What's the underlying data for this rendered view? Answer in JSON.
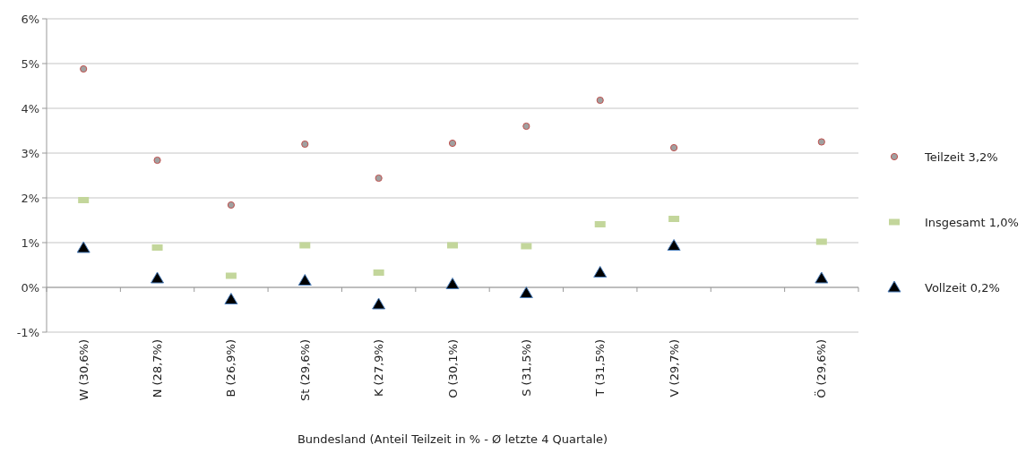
{
  "chart_data": {
    "type": "scatter",
    "xlabel": "Bundesland (Anteil Teilzeit in % - Ø letzte 4 Quartale)",
    "categories": [
      "W (30,6%)",
      "N (28,7%)",
      "B (26,9%)",
      "St (29,6%)",
      "K (27,9%)",
      "O (30,1%)",
      "S (31,5%)",
      "T (31,5%)",
      "V (29,7%)",
      null,
      "Ö (29,6%)"
    ],
    "series": [
      {
        "name": "Teilzeit 3,2%",
        "color": "#a0a0a0",
        "marker": "circle",
        "values": [
          4.88,
          2.84,
          1.84,
          3.2,
          2.44,
          3.22,
          3.6,
          4.18,
          3.12,
          null,
          3.25
        ]
      },
      {
        "name": "Insgesamt 1,0%",
        "color": "#c3d69b",
        "marker": "square",
        "values": [
          1.95,
          0.89,
          0.26,
          0.94,
          0.33,
          0.94,
          0.92,
          1.41,
          1.53,
          null,
          1.02
        ]
      },
      {
        "name": "Vollzeit 0,2%",
        "color": "#000000",
        "marker": "triangle",
        "values": [
          0.88,
          0.2,
          -0.27,
          0.15,
          -0.38,
          0.07,
          -0.13,
          0.33,
          0.93,
          null,
          0.2
        ]
      }
    ],
    "ylim": [
      -1,
      6
    ],
    "yticks": [
      {
        "value": -1,
        "label": "-1%"
      },
      {
        "value": 0,
        "label": "0%"
      },
      {
        "value": 1,
        "label": "1%"
      },
      {
        "value": 2,
        "label": "2%"
      },
      {
        "value": 3,
        "label": "3%"
      },
      {
        "value": 4,
        "label": "4%"
      },
      {
        "value": 5,
        "label": "5%"
      },
      {
        "value": 6,
        "label": "6%"
      }
    ],
    "grid": "y",
    "legend": "right"
  }
}
